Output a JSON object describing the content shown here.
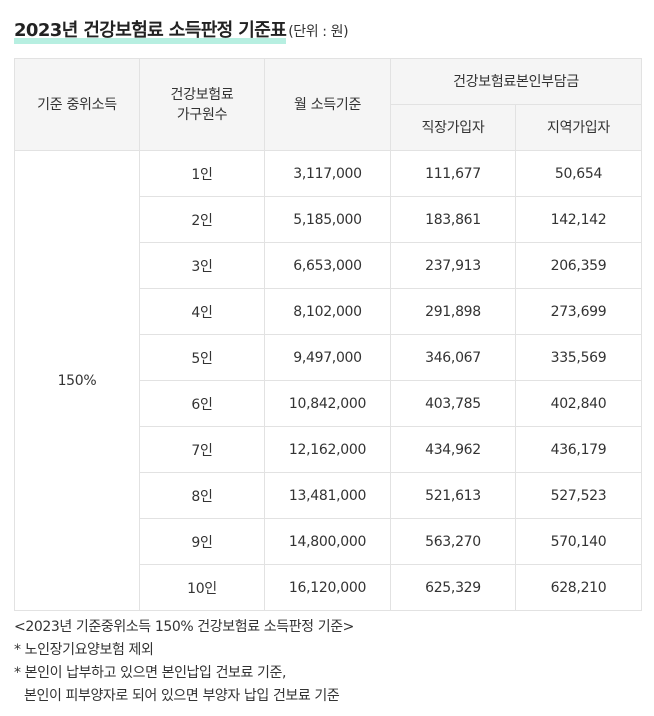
{
  "title": {
    "main": "2023년 건강보험료 소득판정 기준표",
    "unit": "(단위 : 원)"
  },
  "table": {
    "headers": {
      "median_income": "기준 중위소득",
      "household_line1": "건강보험료",
      "household_line2": "가구원수",
      "monthly_income": "월 소득기준",
      "burden_group": "건강보험료본인부담금",
      "employee": "직장가입자",
      "regional": "지역가입자"
    },
    "percent": "150%",
    "rows": [
      {
        "members": "1인",
        "income": "3,117,000",
        "employee": "111,677",
        "regional": "50,654"
      },
      {
        "members": "2인",
        "income": "5,185,000",
        "employee": "183,861",
        "regional": "142,142"
      },
      {
        "members": "3인",
        "income": "6,653,000",
        "employee": "237,913",
        "regional": "206,359"
      },
      {
        "members": "4인",
        "income": "8,102,000",
        "employee": "291,898",
        "regional": "273,699"
      },
      {
        "members": "5인",
        "income": "9,497,000",
        "employee": "346,067",
        "regional": "335,569"
      },
      {
        "members": "6인",
        "income": "10,842,000",
        "employee": "403,785",
        "regional": "402,840"
      },
      {
        "members": "7인",
        "income": "12,162,000",
        "employee": "434,962",
        "regional": "436,179"
      },
      {
        "members": "8인",
        "income": "13,481,000",
        "employee": "521,613",
        "regional": "527,523"
      },
      {
        "members": "9인",
        "income": "14,800,000",
        "employee": "563,270",
        "regional": "570,140"
      },
      {
        "members": "10인",
        "income": "16,120,000",
        "employee": "625,329",
        "regional": "628,210"
      }
    ]
  },
  "notes": {
    "caption": "<2023년 기준중위소득 150% 건강보험료 소득판정 기준>",
    "note1": "* 노인장기요양보험 제외",
    "note2_line1": "* 본인이 납부하고 있으면 본인납입 건보료 기준,",
    "note2_line2": "본인이 피부양자로 되어 있으면 부양자 납입 건보료 기준"
  },
  "colors": {
    "title_highlight": "#b7efe1",
    "header_bg": "#f5f5f5",
    "border": "#e2e2e2"
  }
}
